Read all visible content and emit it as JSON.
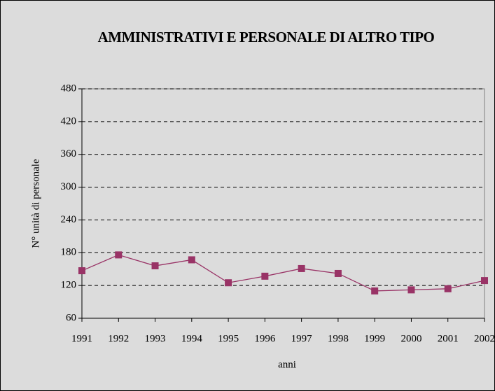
{
  "chart_data": {
    "type": "line",
    "title": "AMMINISTRATIVI E PERSONALE DI ALTRO TIPO",
    "x_label": "anni",
    "y_label": "N° unità di personale",
    "categories": [
      "1991",
      "1992",
      "1993",
      "1994",
      "1995",
      "1996",
      "1997",
      "1998",
      "1999",
      "2000",
      "2001",
      "2002"
    ],
    "series": [
      {
        "name": "Amministrativi e personale di altro tipo",
        "color": "#993366",
        "values": [
          147,
          176,
          156,
          167,
          125,
          137,
          151,
          142,
          110,
          112,
          114,
          129
        ]
      }
    ],
    "ylim": [
      60,
      480
    ],
    "yticks": [
      60,
      120,
      180,
      240,
      300,
      360,
      420,
      480
    ],
    "grid": true
  }
}
